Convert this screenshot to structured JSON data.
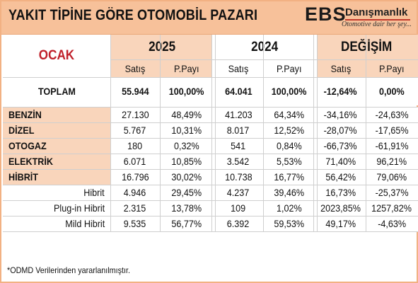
{
  "header": {
    "title": "YAKIT TİPİNE GÖRE OTOMOBİL PAZARI",
    "logo": {
      "mark": "EBS",
      "brand": "Danışmanlık",
      "slogan": "Otomotive dair her şey..."
    },
    "colors": {
      "header_bg": "#f7c19a",
      "peach_cell": "#f9d5bb",
      "ocak_red": "#c0202a"
    }
  },
  "table": {
    "period_label": "OCAK",
    "groups": [
      "2025",
      "2024",
      "DEĞİŞİM"
    ],
    "subheaders": [
      "Satış",
      "P.Payı",
      "Satış",
      "P.Payı",
      "Satış",
      "P.Payı"
    ],
    "rows": [
      {
        "label": "TOPLAM",
        "style": "total",
        "values": [
          "55.944",
          "100,00%",
          "64.041",
          "100,00%",
          "-12,64%",
          "0,00%"
        ]
      },
      {
        "label": "BENZİN",
        "style": "main",
        "values": [
          "27.130",
          "48,49%",
          "41.203",
          "64,34%",
          "-34,16%",
          "-24,63%"
        ]
      },
      {
        "label": "DİZEL",
        "style": "main",
        "values": [
          "5.767",
          "10,31%",
          "8.017",
          "12,52%",
          "-28,07%",
          "-17,65%"
        ]
      },
      {
        "label": "OTOGAZ",
        "style": "main",
        "values": [
          "180",
          "0,32%",
          "541",
          "0,84%",
          "-66,73%",
          "-61,91%"
        ]
      },
      {
        "label": "ELEKTRİK",
        "style": "main",
        "values": [
          "6.071",
          "10,85%",
          "3.542",
          "5,53%",
          "71,40%",
          "96,21%"
        ]
      },
      {
        "label": "HİBRİT",
        "style": "main",
        "values": [
          "16.796",
          "30,02%",
          "10.738",
          "16,77%",
          "56,42%",
          "79,06%"
        ]
      },
      {
        "label": "Hibrit",
        "style": "sub",
        "values": [
          "4.946",
          "29,45%",
          "4.237",
          "39,46%",
          "16,73%",
          "-25,37%"
        ]
      },
      {
        "label": "Plug-in Hibrit",
        "style": "sub",
        "values": [
          "2.315",
          "13,78%",
          "109",
          "1,02%",
          "2023,85%",
          "1257,82%"
        ]
      },
      {
        "label": "Mild Hibrit",
        "style": "sub",
        "values": [
          "9.535",
          "56,77%",
          "6.392",
          "59,53%",
          "49,17%",
          "-4,63%"
        ]
      }
    ]
  },
  "footnote": "*ODMD Verilerinden yararlanılmıştır."
}
